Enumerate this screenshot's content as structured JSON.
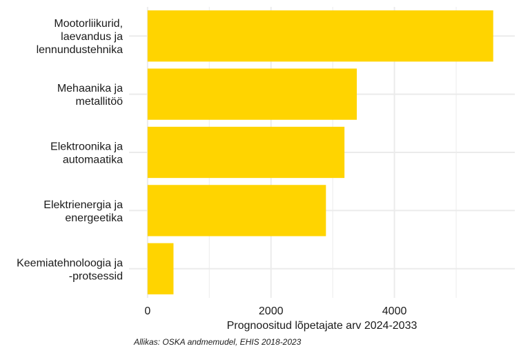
{
  "chart_data": {
    "type": "bar",
    "orientation": "horizontal",
    "categories": [
      "Mootorliikurid, laevandus ja lennundustehnika",
      "Mehaanika ja metallitöö",
      "Elektroonika ja automaatika",
      "Elektrienergia ja energeetika",
      "Keemiatehnoloogia ja -protsessid"
    ],
    "category_lines": [
      [
        "Mootorliikurid,",
        "laevandus ja",
        "lennundustehnika"
      ],
      [
        "Mehaanika ja",
        "metallitöö"
      ],
      [
        "Elektroonika ja",
        "automaatika"
      ],
      [
        "Elektrienergia ja",
        "energeetika"
      ],
      [
        "Keemiatehnoloogia ja",
        "-protsessid"
      ]
    ],
    "values": [
      5600,
      3390,
      3190,
      2890,
      420
    ],
    "xlim": [
      -300,
      5950
    ],
    "xticks": [
      0,
      2000,
      4000
    ],
    "xtick_labels": [
      "0",
      "2000",
      "4000"
    ],
    "minor_xticks": [
      1000,
      3000,
      5000
    ],
    "xlabel": "Prognoositud lõpetajate arv 2024-2033",
    "ylabel": "",
    "bar_color": "#ffd400",
    "grid_color": "#ebebeb",
    "caption": "Allikas: OSKA andmemudel, EHIS 2018-2023"
  }
}
